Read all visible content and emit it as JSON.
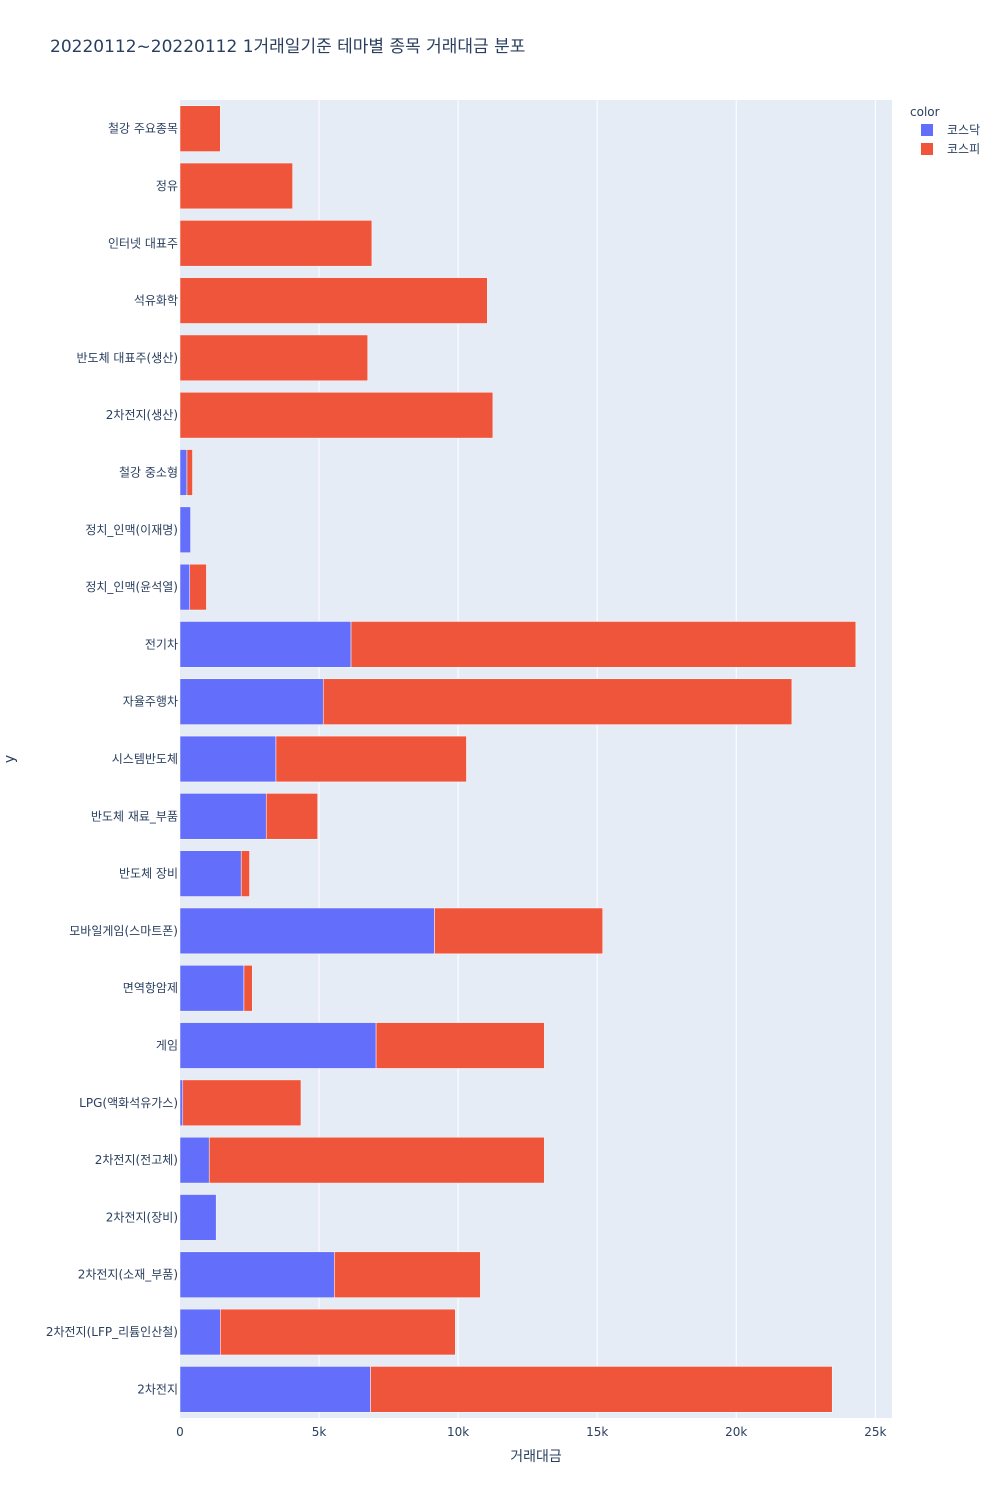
{
  "chart_data": {
    "type": "bar",
    "orientation": "horizontal",
    "barmode": "stack",
    "title": "20220112~20220112 1거래일기준 테마별 종목 거래대금 분포",
    "xlabel": "거래대금",
    "ylabel": "y",
    "xlim": [
      0,
      25600
    ],
    "xticks": [
      0,
      5000,
      10000,
      15000,
      20000,
      25000
    ],
    "xtick_labels": [
      "0",
      "5k",
      "10k",
      "15k",
      "20k",
      "25k"
    ],
    "grid": true,
    "legend": {
      "title": "color",
      "position": "top-right"
    },
    "categories": [
      "철강 주요종목",
      "정유",
      "인터넷 대표주",
      "석유화학",
      "반도체 대표주(생산)",
      "2차전지(생산)",
      "철강 중소형",
      "정치_인맥(이재명)",
      "정치_인맥(윤석열)",
      "전기차",
      "자율주행차",
      "시스템반도체",
      "반도체 재료_부품",
      "반도체 장비",
      "모바일게임(스마트폰)",
      "면역항암제",
      "게임",
      "LPG(액화석유가스)",
      "2차전지(전고체)",
      "2차전지(장비)",
      "2차전지(소재_부품)",
      "2차전지(LFP_리튬인산철)",
      "2차전지"
    ],
    "series": [
      {
        "name": "코스닥",
        "color": "#636efa",
        "values": [
          0,
          0,
          0,
          0,
          0,
          0,
          250,
          380,
          350,
          6150,
          5150,
          3450,
          3100,
          2200,
          9150,
          2300,
          7050,
          100,
          1050,
          1300,
          5550,
          1450,
          6850
        ]
      },
      {
        "name": "코스피",
        "color": "#ef553b",
        "values": [
          1450,
          4050,
          6900,
          11050,
          6750,
          11250,
          200,
          0,
          600,
          18150,
          16850,
          6850,
          1850,
          300,
          6050,
          300,
          6050,
          4250,
          12050,
          0,
          5250,
          8450,
          16600
        ]
      }
    ]
  }
}
